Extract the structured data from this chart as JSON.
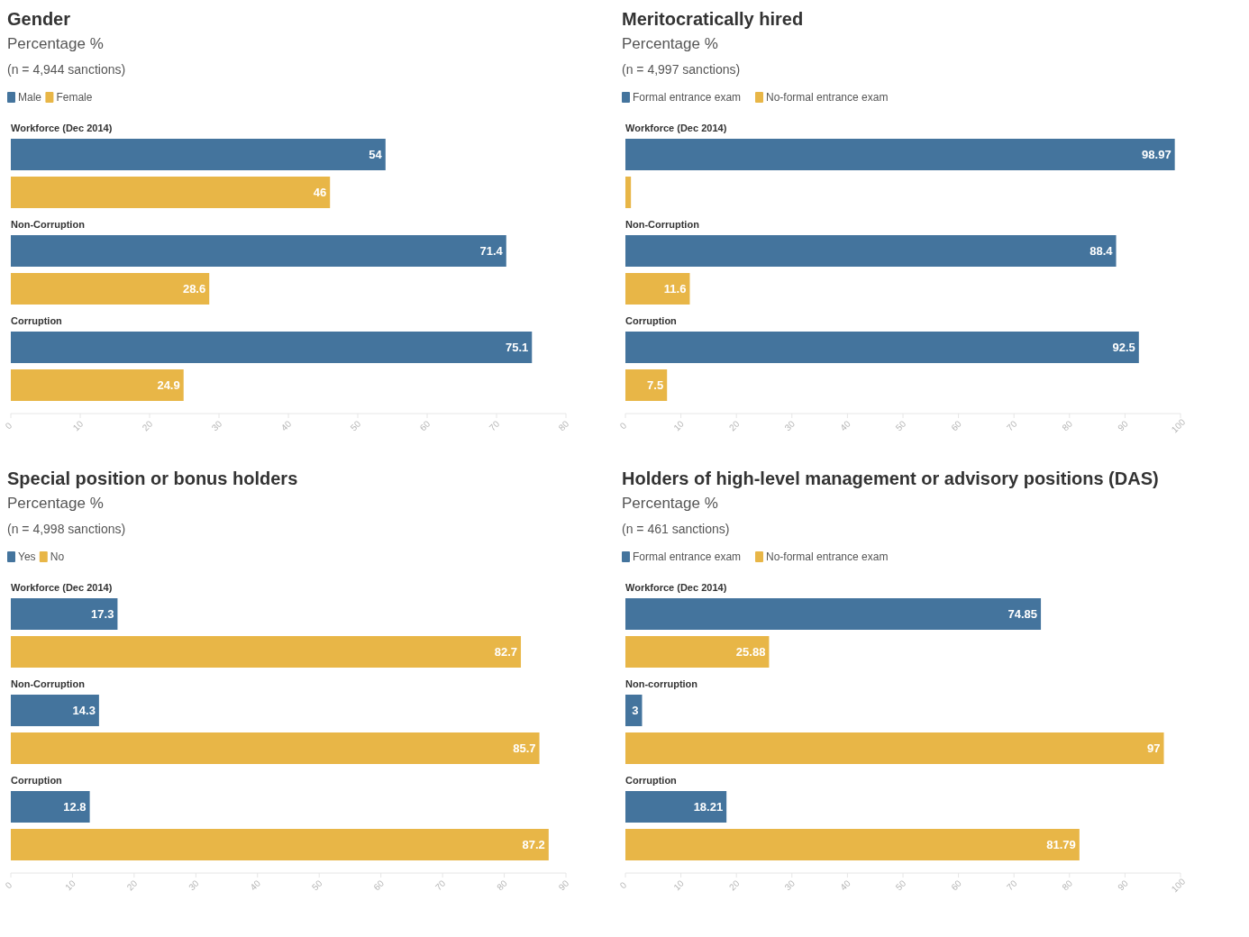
{
  "chart_data": [
    {
      "type": "bar",
      "orientation": "horizontal",
      "title": "Gender",
      "subtitle": "Percentage %",
      "annotations": [
        "(n = 4,944 sanctions)"
      ],
      "categories": [
        "Workforce (Dec 2014)",
        "Non-Corruption",
        "Corruption"
      ],
      "series": [
        {
          "name": "Male",
          "color": "#44749d",
          "values": [
            54,
            71.4,
            75.1
          ]
        },
        {
          "name": "Female",
          "color": "#e8b647",
          "values": [
            46,
            28.6,
            24.9
          ]
        }
      ],
      "xlim": [
        0,
        80
      ],
      "xticks": [
        0,
        10,
        20,
        30,
        40,
        50,
        60,
        70,
        80
      ],
      "data_labels": true,
      "legend": "top left"
    },
    {
      "type": "bar",
      "orientation": "horizontal",
      "title": "Meritocratically hired",
      "subtitle": "Percentage %",
      "annotations": [
        "(n = 4,997 sanctions)"
      ],
      "categories": [
        "Workforce (Dec 2014)",
        "Non-Corruption",
        "Corruption"
      ],
      "series": [
        {
          "name": "Formal entrance exam",
          "color": "#44749d",
          "values": [
            98.97,
            88.4,
            92.5
          ],
          "value_labels": [
            "98.97",
            "88.4",
            "92.5"
          ]
        },
        {
          "name": "No-formal entrance exam",
          "color": "#e8b647",
          "values": [
            1,
            11.6,
            7.5
          ],
          "value_labels": [
            null,
            "11.6",
            "7.5"
          ]
        }
      ],
      "xlim": [
        0,
        100
      ],
      "xticks": [
        0,
        10,
        20,
        30,
        40,
        50,
        60,
        70,
        80,
        90,
        100
      ],
      "legend": "top left"
    },
    {
      "type": "bar",
      "orientation": "horizontal",
      "title": "Special position or bonus holders",
      "subtitle": "Percentage %",
      "annotations": [
        "(n = 4,998 sanctions)"
      ],
      "categories": [
        "Workforce (Dec 2014)",
        "Non-Corruption",
        "Corruption"
      ],
      "series": [
        {
          "name": "Yes",
          "color": "#44749d",
          "values": [
            17.3,
            14.3,
            12.8
          ]
        },
        {
          "name": "No",
          "color": "#e8b647",
          "values": [
            82.7,
            85.7,
            87.2
          ]
        }
      ],
      "xlim": [
        0,
        90
      ],
      "xticks": [
        0,
        10,
        20,
        30,
        40,
        50,
        60,
        70,
        80,
        90
      ],
      "data_labels": true,
      "legend": "top left"
    },
    {
      "type": "bar",
      "orientation": "horizontal",
      "title": "Holders of high-level management or advisory positions (DAS)",
      "subtitle": "Percentage %",
      "annotations": [
        "(n = 461 sanctions)"
      ],
      "categories": [
        "Workforce (Dec 2014)",
        "Non-corruption",
        "Corruption"
      ],
      "series": [
        {
          "name": "Formal entrance exam",
          "color": "#44749d",
          "values": [
            74.85,
            3,
            18.21
          ]
        },
        {
          "name": "No-formal entrance exam",
          "color": "#e8b647",
          "values": [
            25.88,
            97,
            81.79
          ]
        }
      ],
      "xlim": [
        0,
        100
      ],
      "xticks": [
        0,
        10,
        20,
        30,
        40,
        50,
        60,
        70,
        80,
        90,
        100
      ],
      "data_labels": true,
      "legend": "top left"
    }
  ]
}
